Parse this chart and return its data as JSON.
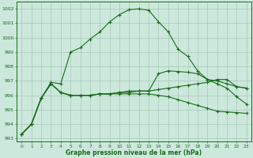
{
  "x": [
    0,
    1,
    2,
    3,
    4,
    5,
    6,
    7,
    8,
    9,
    10,
    11,
    12,
    13,
    14,
    15,
    16,
    17,
    18,
    19,
    20,
    21,
    22,
    23
  ],
  "line1": [
    993.3,
    994.0,
    995.8,
    996.9,
    996.8,
    999.0,
    999.3,
    999.9,
    1000.4,
    1001.1,
    1001.6,
    1001.95,
    1002.0,
    1001.9,
    1001.1,
    1000.4,
    999.2,
    998.7,
    997.7,
    997.1,
    997.0,
    996.8,
    996.6,
    996.5
  ],
  "line2": [
    993.3,
    994.0,
    995.8,
    996.8,
    996.2,
    996.0,
    996.0,
    996.0,
    996.1,
    996.1,
    996.2,
    996.2,
    996.3,
    996.3,
    996.4,
    996.5,
    996.6,
    996.7,
    996.8,
    996.9,
    997.1,
    997.1,
    996.6,
    996.5
  ],
  "line3": [
    993.3,
    994.0,
    995.8,
    996.8,
    996.2,
    996.0,
    996.0,
    996.0,
    996.1,
    996.1,
    996.1,
    996.1,
    996.1,
    996.1,
    996.0,
    995.9,
    995.7,
    995.5,
    995.3,
    995.1,
    994.9,
    994.85,
    994.8,
    994.75
  ],
  "line4": [
    993.3,
    994.0,
    995.8,
    996.8,
    996.2,
    996.0,
    996.0,
    996.0,
    996.1,
    996.1,
    996.2,
    996.3,
    996.3,
    996.3,
    997.5,
    997.7,
    997.65,
    997.6,
    997.5,
    997.1,
    996.8,
    996.5,
    995.9,
    995.4
  ],
  "line_color": "#1a6b1a",
  "bg_color": "#cce8dc",
  "grid_color": "#9dbfad",
  "xlabel": "Graphe pression niveau de la mer (hPa)",
  "ylim": [
    992.8,
    1002.5
  ],
  "yticks": [
    993,
    994,
    995,
    996,
    997,
    998,
    999,
    1000,
    1001,
    1002
  ],
  "xtick_labels": [
    "0",
    "1",
    "2",
    "3",
    "4",
    "5",
    "6",
    "7",
    "8",
    "9",
    "10",
    "11",
    "12",
    "13",
    "14",
    "15",
    "16",
    "17",
    "18",
    "19",
    "20",
    "21",
    "22",
    "23"
  ]
}
